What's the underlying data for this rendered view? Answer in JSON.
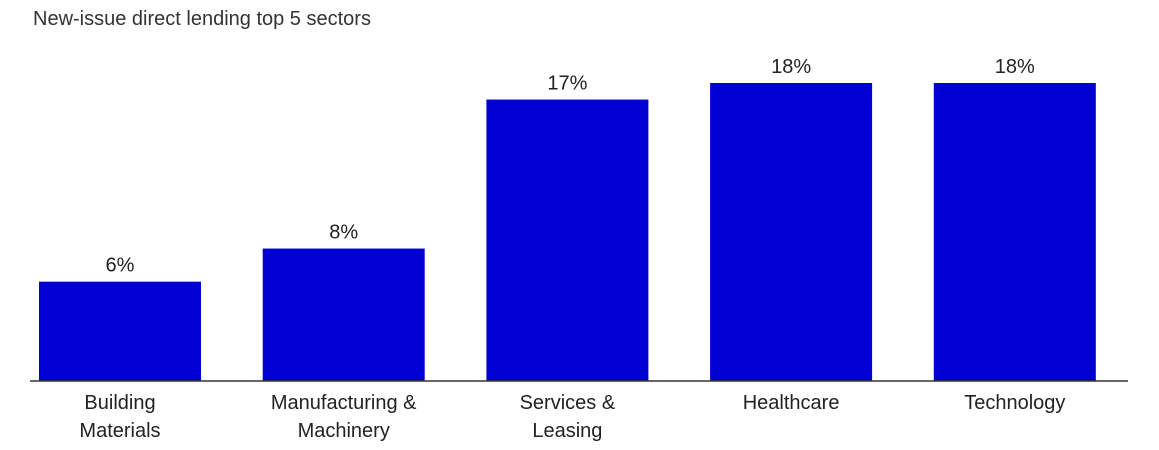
{
  "chart_data": {
    "type": "bar",
    "title": "New-issue direct lending top 5 sectors",
    "categories": [
      [
        "Building",
        "Materials"
      ],
      [
        "Manufacturing &",
        "Machinery"
      ],
      [
        "Services &",
        "Leasing"
      ],
      [
        "Healthcare"
      ],
      [
        "Technology"
      ]
    ],
    "values": [
      6,
      8,
      17,
      18,
      18
    ],
    "data_labels": [
      "6%",
      "8%",
      "17%",
      "18%",
      "18%"
    ],
    "unit": "%",
    "ylim": [
      0,
      18
    ],
    "grid": false,
    "bar_color": "#0000d2",
    "axis_color": "#333333"
  }
}
